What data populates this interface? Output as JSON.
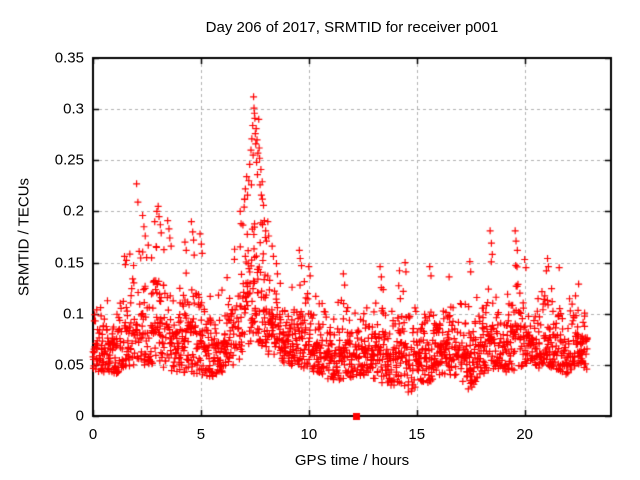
{
  "window": {
    "background_color": "#ffffff",
    "text_color": "#000000"
  },
  "chart_data": {
    "type": "scatter",
    "title": "Day 206 of 2017, SRMTID for receiver p001",
    "xlabel": "GPS time / hours",
    "ylabel": "SRMTID / TECUs",
    "xlim": [
      0,
      24
    ],
    "ylim": [
      0,
      0.35
    ],
    "xticks": [
      0,
      5,
      10,
      15,
      20
    ],
    "xtick_labels": [
      "0",
      "5",
      "10",
      "15",
      "20"
    ],
    "yticks": [
      0,
      0.05,
      0.1,
      0.15,
      0.2,
      0.25,
      0.3,
      0.35
    ],
    "ytick_labels": [
      "0",
      "0.05",
      "0.1",
      "0.15",
      "0.2",
      "0.25",
      "0.3",
      "0.35"
    ],
    "grid": true,
    "grid_style": "dashed",
    "grid_color": "#b0b0b0",
    "border_color": "#000000",
    "legend": "none",
    "marker": "plus",
    "marker_size": 7,
    "marker_color": "#ff0000",
    "time_span": [
      0,
      22.93
    ],
    "sample_steps_per_hour": 30,
    "seed": 11,
    "baseline_envelope_t_lo_hi": [
      [
        0,
        0.045,
        0.125
      ],
      [
        0.5,
        0.042,
        0.115
      ],
      [
        1,
        0.04,
        0.12
      ],
      [
        1.5,
        0.048,
        0.15
      ],
      [
        2,
        0.05,
        0.185
      ],
      [
        2.5,
        0.05,
        0.155
      ],
      [
        3,
        0.05,
        0.175
      ],
      [
        3.5,
        0.045,
        0.16
      ],
      [
        4,
        0.04,
        0.135
      ],
      [
        4.5,
        0.042,
        0.165
      ],
      [
        5,
        0.04,
        0.15
      ],
      [
        5.5,
        0.038,
        0.115
      ],
      [
        6,
        0.042,
        0.125
      ],
      [
        6.5,
        0.05,
        0.155
      ],
      [
        7,
        0.06,
        0.21
      ],
      [
        7.5,
        0.075,
        0.28
      ],
      [
        7.8,
        0.07,
        0.24
      ],
      [
        8,
        0.06,
        0.175
      ],
      [
        8.5,
        0.055,
        0.15
      ],
      [
        9,
        0.05,
        0.115
      ],
      [
        9.5,
        0.048,
        0.15
      ],
      [
        10,
        0.045,
        0.13
      ],
      [
        10.5,
        0.04,
        0.115
      ],
      [
        11,
        0.035,
        0.105
      ],
      [
        11.5,
        0.035,
        0.115
      ],
      [
        12,
        0.038,
        0.1
      ],
      [
        12.5,
        0.04,
        0.105
      ],
      [
        13,
        0.035,
        0.115
      ],
      [
        13.4,
        0.032,
        0.135
      ],
      [
        13.8,
        0.03,
        0.11
      ],
      [
        14.2,
        0.028,
        0.13
      ],
      [
        14.6,
        0.02,
        0.14
      ],
      [
        15,
        0.03,
        0.105
      ],
      [
        15.6,
        0.032,
        0.135
      ],
      [
        16,
        0.04,
        0.115
      ],
      [
        16.5,
        0.04,
        0.125
      ],
      [
        17,
        0.038,
        0.115
      ],
      [
        17.5,
        0.022,
        0.125
      ],
      [
        18,
        0.04,
        0.125
      ],
      [
        18.5,
        0.045,
        0.155
      ],
      [
        19,
        0.042,
        0.115
      ],
      [
        19.6,
        0.045,
        0.165
      ],
      [
        20,
        0.05,
        0.14
      ],
      [
        20.5,
        0.045,
        0.115
      ],
      [
        21,
        0.05,
        0.145
      ],
      [
        21.5,
        0.045,
        0.13
      ],
      [
        22,
        0.04,
        0.12
      ],
      [
        22.5,
        0.05,
        0.135
      ],
      [
        22.93,
        0.045,
        0.115
      ]
    ],
    "peak_points": [
      [
        1.46,
        0.156
      ],
      [
        1.5,
        0.148
      ],
      [
        2.02,
        0.227
      ],
      [
        2.08,
        0.209
      ],
      [
        2.3,
        0.196
      ],
      [
        2.36,
        0.185
      ],
      [
        2.42,
        0.176
      ],
      [
        2.56,
        0.167
      ],
      [
        2.86,
        0.19
      ],
      [
        2.96,
        0.2
      ],
      [
        3.02,
        0.205
      ],
      [
        3.06,
        0.195
      ],
      [
        3.12,
        0.187
      ],
      [
        3.16,
        0.179
      ],
      [
        3.46,
        0.191
      ],
      [
        3.52,
        0.183
      ],
      [
        3.56,
        0.174
      ],
      [
        3.62,
        0.166
      ],
      [
        4.26,
        0.17
      ],
      [
        4.32,
        0.162
      ],
      [
        4.56,
        0.19
      ],
      [
        4.62,
        0.18
      ],
      [
        4.66,
        0.172
      ],
      [
        4.96,
        0.178
      ],
      [
        5.02,
        0.168
      ],
      [
        5.06,
        0.159
      ],
      [
        6.56,
        0.163
      ],
      [
        6.82,
        0.2
      ],
      [
        6.86,
        0.188
      ],
      [
        7.02,
        0.212
      ],
      [
        7.06,
        0.222
      ],
      [
        7.12,
        0.234
      ],
      [
        7.16,
        0.216
      ],
      [
        7.22,
        0.23
      ],
      [
        7.26,
        0.246
      ],
      [
        7.32,
        0.26
      ],
      [
        7.34,
        0.226
      ],
      [
        7.36,
        0.271
      ],
      [
        7.4,
        0.284
      ],
      [
        7.42,
        0.255
      ],
      [
        7.44,
        0.312
      ],
      [
        7.46,
        0.301
      ],
      [
        7.48,
        0.296
      ],
      [
        7.5,
        0.291
      ],
      [
        7.52,
        0.276
      ],
      [
        7.54,
        0.266
      ],
      [
        7.56,
        0.281
      ],
      [
        7.58,
        0.248
      ],
      [
        7.6,
        0.27
      ],
      [
        7.62,
        0.236
      ],
      [
        7.64,
        0.257
      ],
      [
        7.68,
        0.29
      ],
      [
        7.7,
        0.262
      ],
      [
        7.72,
        0.252
      ],
      [
        7.74,
        0.226
      ],
      [
        7.78,
        0.241
      ],
      [
        7.8,
        0.216
      ],
      [
        7.84,
        0.229
      ],
      [
        7.9,
        0.206
      ],
      [
        7.94,
        0.191
      ],
      [
        8.0,
        0.181
      ],
      [
        8.04,
        0.171
      ],
      [
        8.1,
        0.19
      ],
      [
        8.14,
        0.176
      ],
      [
        8.3,
        0.166
      ],
      [
        8.36,
        0.156
      ],
      [
        8.5,
        0.149
      ],
      [
        9.56,
        0.162
      ],
      [
        9.6,
        0.154
      ],
      [
        9.66,
        0.147
      ],
      [
        10.0,
        0.146
      ],
      [
        10.06,
        0.137
      ],
      [
        11.6,
        0.139
      ],
      [
        11.66,
        0.128
      ],
      [
        13.3,
        0.146
      ],
      [
        13.36,
        0.136
      ],
      [
        14.2,
        0.142
      ],
      [
        14.46,
        0.15
      ],
      [
        14.5,
        0.141
      ],
      [
        15.6,
        0.146
      ],
      [
        15.66,
        0.137
      ],
      [
        16.5,
        0.136
      ],
      [
        17.46,
        0.151
      ],
      [
        17.5,
        0.141
      ],
      [
        18.4,
        0.181
      ],
      [
        18.46,
        0.169
      ],
      [
        18.5,
        0.158
      ],
      [
        19.56,
        0.181
      ],
      [
        19.6,
        0.171
      ],
      [
        19.66,
        0.162
      ],
      [
        20.0,
        0.153
      ],
      [
        20.06,
        0.145
      ],
      [
        21.06,
        0.154
      ],
      [
        21.1,
        0.146
      ],
      [
        21.6,
        0.145
      ],
      [
        22.5,
        0.129
      ]
    ],
    "special_points": [
      {
        "x": 12.2,
        "y": 0,
        "marker": "filled-square",
        "size": 7,
        "color": "#ff0000"
      }
    ]
  }
}
